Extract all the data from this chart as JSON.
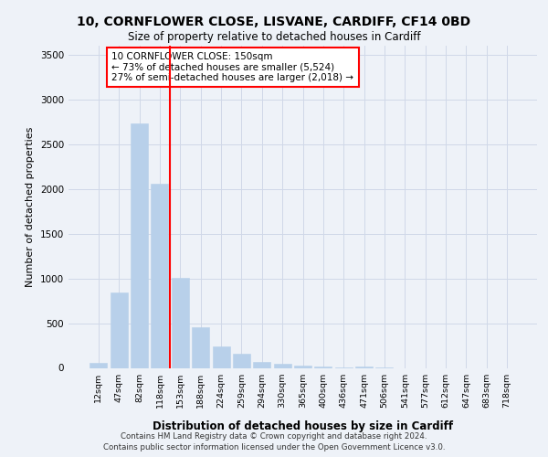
{
  "title_line1": "10, CORNFLOWER CLOSE, LISVANE, CARDIFF, CF14 0BD",
  "title_line2": "Size of property relative to detached houses in Cardiff",
  "xlabel": "Distribution of detached houses by size in Cardiff",
  "ylabel": "Number of detached properties",
  "bar_labels": [
    "12sqm",
    "47sqm",
    "82sqm",
    "118sqm",
    "153sqm",
    "188sqm",
    "224sqm",
    "259sqm",
    "294sqm",
    "330sqm",
    "365sqm",
    "400sqm",
    "436sqm",
    "471sqm",
    "506sqm",
    "541sqm",
    "577sqm",
    "612sqm",
    "647sqm",
    "683sqm",
    "718sqm"
  ],
  "bar_values": [
    55,
    840,
    2730,
    2060,
    1010,
    450,
    240,
    155,
    70,
    45,
    30,
    15,
    5,
    18,
    5,
    0,
    0,
    0,
    0,
    0,
    0
  ],
  "bar_color": "#b8d0ea",
  "bar_edge_color": "#b8d0ea",
  "grid_color": "#d0d8e8",
  "background_color": "#eef2f8",
  "vline_x": 3.5,
  "vline_color": "red",
  "ylim": [
    0,
    3600
  ],
  "yticks": [
    0,
    500,
    1000,
    1500,
    2000,
    2500,
    3000,
    3500
  ],
  "annotation_title": "10 CORNFLOWER CLOSE: 150sqm",
  "annotation_line1": "← 73% of detached houses are smaller (5,524)",
  "annotation_line2": "27% of semi-detached houses are larger (2,018) →",
  "annotation_box_color": "white",
  "annotation_box_edge": "red",
  "footer_line1": "Contains HM Land Registry data © Crown copyright and database right 2024.",
  "footer_line2": "Contains public sector information licensed under the Open Government Licence v3.0."
}
